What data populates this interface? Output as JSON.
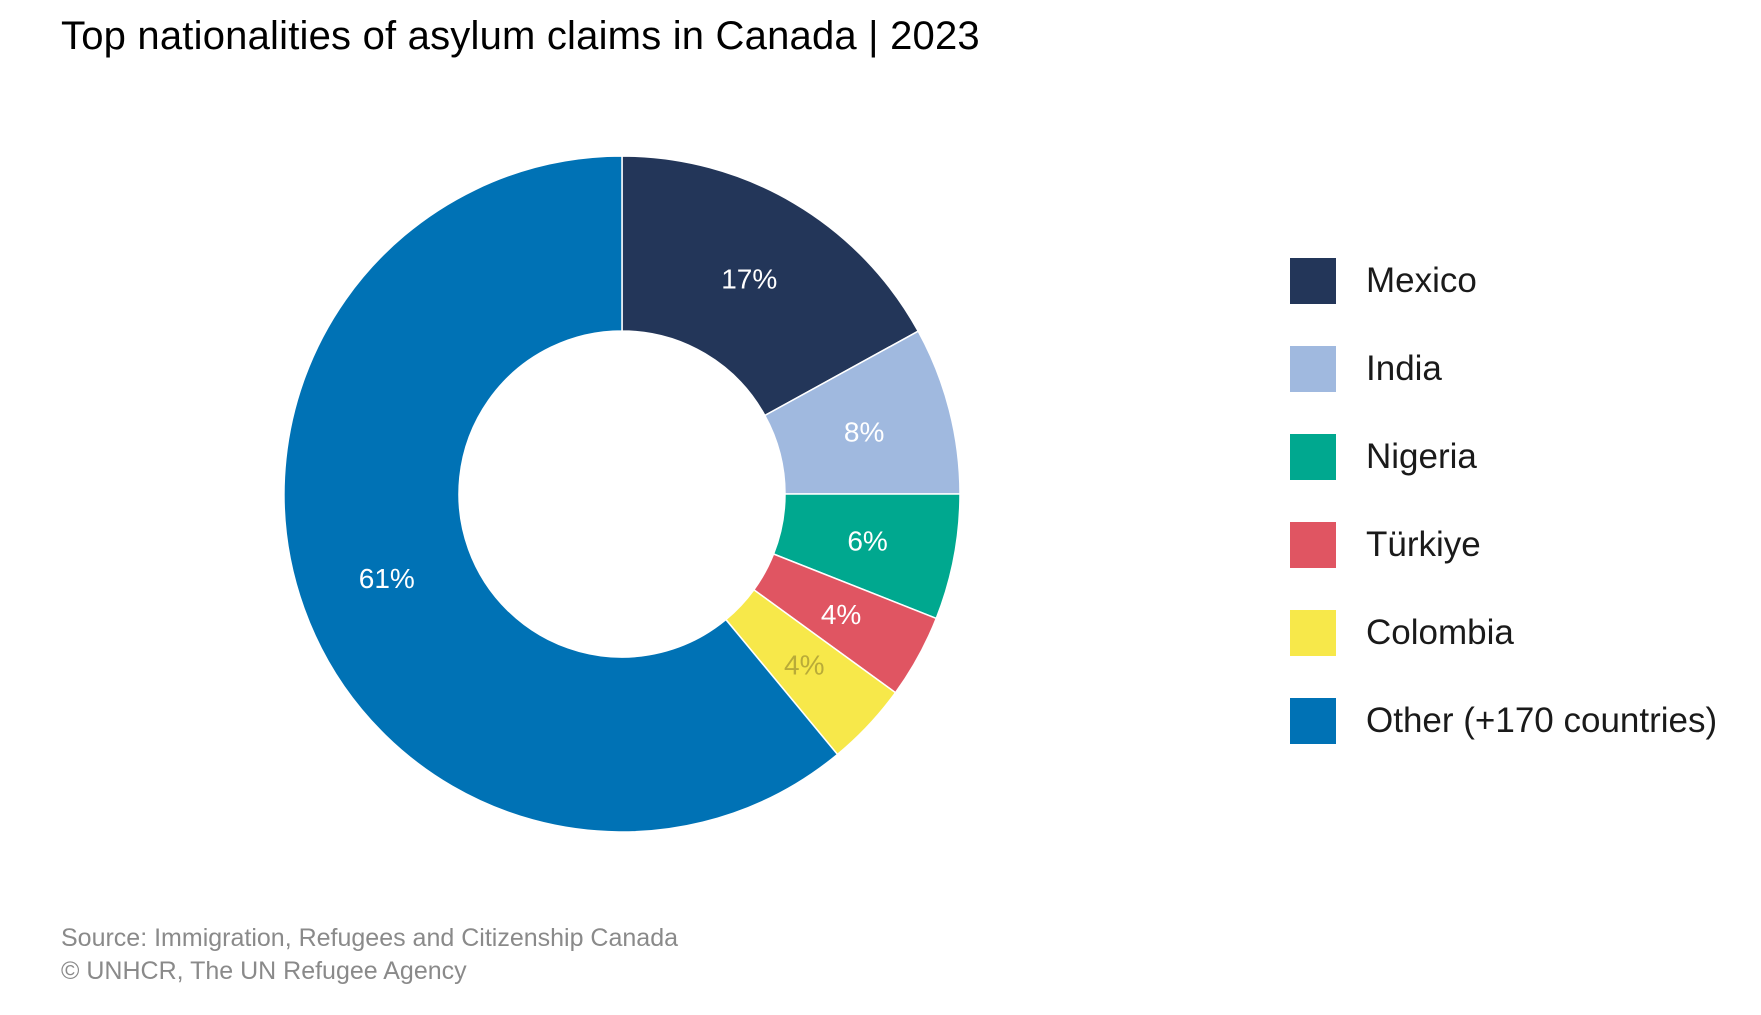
{
  "title": "Top nationalities of asylum claims in Canada | 2023",
  "chart_data": {
    "type": "pie",
    "title": "Top nationalities of asylum claims in Canada | 2023",
    "donut": true,
    "legend_position": "right",
    "categories": [
      "Mexico",
      "India",
      "Nigeria",
      "Türkiye",
      "Colombia",
      "Other (+170 countries)"
    ],
    "values": [
      17,
      8,
      6,
      4,
      4,
      61
    ],
    "labels": [
      "17%",
      "8%",
      "6%",
      "4%",
      "4%",
      "61%"
    ],
    "colors": [
      "#233659",
      "#a0b9df",
      "#00a88f",
      "#e05562",
      "#f7e84a",
      "#0072b5"
    ],
    "label_colors": [
      "#ffffff",
      "#ffffff",
      "#ffffff",
      "#ffffff",
      "#b9ab38",
      "#ffffff"
    ]
  },
  "footer": {
    "source": "Source: Immigration, Refugees and Citizenship Canada",
    "credit": "© UNHCR, The UN Refugee Agency"
  }
}
